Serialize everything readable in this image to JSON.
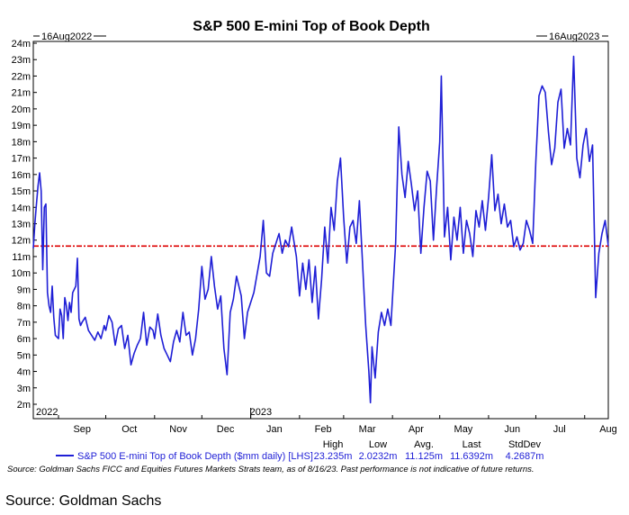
{
  "chart_data": {
    "type": "line",
    "title": "S&P 500 E-mini Top of Book Depth",
    "range_start_label": "16Aug2022",
    "range_end_label": "16Aug2023",
    "y_ticks": [
      "2m",
      "3m",
      "4m",
      "5m",
      "6m",
      "7m",
      "8m",
      "9m",
      "10m",
      "11m",
      "12m",
      "13m",
      "14m",
      "15m",
      "16m",
      "17m",
      "18m",
      "19m",
      "20m",
      "21m",
      "22m",
      "23m",
      "24m"
    ],
    "ylim": [
      2,
      24
    ],
    "xlim": [
      "2022-08-16",
      "2023-08-16"
    ],
    "x_ticks": [
      {
        "label": "Sep",
        "date": "2022-09-01"
      },
      {
        "label": "Oct",
        "date": "2022-10-01"
      },
      {
        "label": "Nov",
        "date": "2022-11-01"
      },
      {
        "label": "Dec",
        "date": "2022-12-01"
      },
      {
        "label": "Jan",
        "date": "2023-01-01"
      },
      {
        "label": "Feb",
        "date": "2023-02-01"
      },
      {
        "label": "Mar",
        "date": "2023-03-01"
      },
      {
        "label": "Apr",
        "date": "2023-04-01"
      },
      {
        "label": "May",
        "date": "2023-05-01"
      },
      {
        "label": "Jun",
        "date": "2023-06-01"
      },
      {
        "label": "Jul",
        "date": "2023-07-01"
      },
      {
        "label": "Aug",
        "date": "2023-08-01"
      }
    ],
    "year_labels": [
      {
        "label": "2022",
        "date": "2022-08-16"
      },
      {
        "label": "2023",
        "date": "2023-01-01"
      }
    ],
    "reference_line": {
      "value": 11.6392,
      "color": "#dd0000"
    },
    "series": [
      {
        "name": "S&P 500 E-mini Top of Book Depth ($mm daily) [LHS]",
        "color": "#1f1fd6",
        "points": [
          [
            "2022-08-16",
            11.5
          ],
          [
            "2022-08-17",
            13.0
          ],
          [
            "2022-08-18",
            14.2
          ],
          [
            "2022-08-19",
            15.3
          ],
          [
            "2022-08-20",
            16.1
          ],
          [
            "2022-08-21",
            15.0
          ],
          [
            "2022-08-22",
            10.2
          ],
          [
            "2022-08-23",
            14.0
          ],
          [
            "2022-08-24",
            14.2
          ],
          [
            "2022-08-25",
            8.8
          ],
          [
            "2022-08-26",
            8.0
          ],
          [
            "2022-08-27",
            7.6
          ],
          [
            "2022-08-28",
            9.2
          ],
          [
            "2022-08-29",
            7.3
          ],
          [
            "2022-08-30",
            6.2
          ],
          [
            "2022-08-31",
            6.1
          ],
          [
            "2022-09-01",
            6.0
          ],
          [
            "2022-09-02",
            7.8
          ],
          [
            "2022-09-03",
            7.4
          ],
          [
            "2022-09-04",
            6.0
          ],
          [
            "2022-09-05",
            8.5
          ],
          [
            "2022-09-06",
            8.0
          ],
          [
            "2022-09-07",
            7.1
          ],
          [
            "2022-09-08",
            8.2
          ],
          [
            "2022-09-09",
            7.6
          ],
          [
            "2022-09-10",
            8.8
          ],
          [
            "2022-09-12",
            9.2
          ],
          [
            "2022-09-13",
            10.9
          ],
          [
            "2022-09-14",
            7.2
          ],
          [
            "2022-09-15",
            6.8
          ],
          [
            "2022-09-16",
            7.0
          ],
          [
            "2022-09-18",
            7.3
          ],
          [
            "2022-09-20",
            6.5
          ],
          [
            "2022-09-22",
            6.2
          ],
          [
            "2022-09-24",
            5.9
          ],
          [
            "2022-09-26",
            6.4
          ],
          [
            "2022-09-28",
            6.0
          ],
          [
            "2022-09-30",
            6.8
          ],
          [
            "2022-10-01",
            6.5
          ],
          [
            "2022-10-03",
            7.4
          ],
          [
            "2022-10-05",
            7.0
          ],
          [
            "2022-10-07",
            5.6
          ],
          [
            "2022-10-09",
            6.6
          ],
          [
            "2022-10-11",
            6.8
          ],
          [
            "2022-10-13",
            5.4
          ],
          [
            "2022-10-15",
            6.2
          ],
          [
            "2022-10-17",
            4.4
          ],
          [
            "2022-10-19",
            5.1
          ],
          [
            "2022-10-21",
            5.6
          ],
          [
            "2022-10-23",
            6.0
          ],
          [
            "2022-10-25",
            7.6
          ],
          [
            "2022-10-27",
            5.6
          ],
          [
            "2022-10-29",
            6.7
          ],
          [
            "2022-10-31",
            6.5
          ],
          [
            "2022-11-01",
            6.0
          ],
          [
            "2022-11-03",
            7.5
          ],
          [
            "2022-11-05",
            6.2
          ],
          [
            "2022-11-07",
            5.4
          ],
          [
            "2022-11-09",
            5.0
          ],
          [
            "2022-11-11",
            4.6
          ],
          [
            "2022-11-13",
            5.8
          ],
          [
            "2022-11-15",
            6.5
          ],
          [
            "2022-11-17",
            5.8
          ],
          [
            "2022-11-19",
            7.6
          ],
          [
            "2022-11-21",
            6.2
          ],
          [
            "2022-11-23",
            6.4
          ],
          [
            "2022-11-25",
            5.0
          ],
          [
            "2022-11-27",
            6.0
          ],
          [
            "2022-11-29",
            7.8
          ],
          [
            "2022-12-01",
            10.4
          ],
          [
            "2022-12-03",
            8.4
          ],
          [
            "2022-12-05",
            9.0
          ],
          [
            "2022-12-07",
            11.0
          ],
          [
            "2022-12-09",
            9.2
          ],
          [
            "2022-12-11",
            7.8
          ],
          [
            "2022-12-13",
            8.6
          ],
          [
            "2022-12-15",
            5.4
          ],
          [
            "2022-12-17",
            3.8
          ],
          [
            "2022-12-19",
            7.6
          ],
          [
            "2022-12-21",
            8.4
          ],
          [
            "2022-12-23",
            9.8
          ],
          [
            "2022-12-26",
            8.6
          ],
          [
            "2022-12-28",
            6.0
          ],
          [
            "2022-12-30",
            7.6
          ],
          [
            "2023-01-03",
            8.8
          ],
          [
            "2023-01-05",
            9.9
          ],
          [
            "2023-01-07",
            11.0
          ],
          [
            "2023-01-09",
            13.2
          ],
          [
            "2023-01-11",
            10.0
          ],
          [
            "2023-01-13",
            9.8
          ],
          [
            "2023-01-15",
            11.2
          ],
          [
            "2023-01-17",
            11.8
          ],
          [
            "2023-01-19",
            12.4
          ],
          [
            "2023-01-21",
            11.2
          ],
          [
            "2023-01-23",
            12.0
          ],
          [
            "2023-01-25",
            11.6
          ],
          [
            "2023-01-27",
            12.8
          ],
          [
            "2023-01-30",
            11.0
          ],
          [
            "2023-02-01",
            8.6
          ],
          [
            "2023-02-03",
            10.6
          ],
          [
            "2023-02-05",
            9.0
          ],
          [
            "2023-02-07",
            10.8
          ],
          [
            "2023-02-09",
            8.2
          ],
          [
            "2023-02-11",
            10.4
          ],
          [
            "2023-02-13",
            7.2
          ],
          [
            "2023-02-15",
            9.6
          ],
          [
            "2023-02-17",
            12.8
          ],
          [
            "2023-02-19",
            10.6
          ],
          [
            "2023-02-21",
            14.0
          ],
          [
            "2023-02-23",
            12.6
          ],
          [
            "2023-02-25",
            15.6
          ],
          [
            "2023-02-27",
            17.0
          ],
          [
            "2023-03-01",
            13.4
          ],
          [
            "2023-03-03",
            10.6
          ],
          [
            "2023-03-05",
            12.8
          ],
          [
            "2023-03-07",
            13.2
          ],
          [
            "2023-03-09",
            11.8
          ],
          [
            "2023-03-11",
            14.4
          ],
          [
            "2023-03-13",
            10.6
          ],
          [
            "2023-03-15",
            6.8
          ],
          [
            "2023-03-17",
            4.0
          ],
          [
            "2023-03-18",
            2.1
          ],
          [
            "2023-03-19",
            5.5
          ],
          [
            "2023-03-21",
            3.6
          ],
          [
            "2023-03-23",
            6.4
          ],
          [
            "2023-03-25",
            7.6
          ],
          [
            "2023-03-27",
            6.8
          ],
          [
            "2023-03-29",
            7.8
          ],
          [
            "2023-03-31",
            6.8
          ],
          [
            "2023-04-03",
            11.8
          ],
          [
            "2023-04-05",
            18.9
          ],
          [
            "2023-04-07",
            16.0
          ],
          [
            "2023-04-09",
            14.6
          ],
          [
            "2023-04-11",
            16.8
          ],
          [
            "2023-04-13",
            15.4
          ],
          [
            "2023-04-15",
            13.8
          ],
          [
            "2023-04-17",
            15.0
          ],
          [
            "2023-04-19",
            11.2
          ],
          [
            "2023-04-21",
            14.0
          ],
          [
            "2023-04-23",
            16.2
          ],
          [
            "2023-04-25",
            15.6
          ],
          [
            "2023-04-27",
            12.0
          ],
          [
            "2023-04-29",
            15.2
          ],
          [
            "2023-05-01",
            18.0
          ],
          [
            "2023-05-02",
            22.0
          ],
          [
            "2023-05-04",
            12.2
          ],
          [
            "2023-05-06",
            14.0
          ],
          [
            "2023-05-08",
            10.8
          ],
          [
            "2023-05-10",
            13.4
          ],
          [
            "2023-05-12",
            12.0
          ],
          [
            "2023-05-14",
            14.0
          ],
          [
            "2023-05-16",
            11.2
          ],
          [
            "2023-05-18",
            13.2
          ],
          [
            "2023-05-20",
            12.4
          ],
          [
            "2023-05-22",
            11.0
          ],
          [
            "2023-05-24",
            13.8
          ],
          [
            "2023-05-26",
            12.8
          ],
          [
            "2023-05-28",
            14.4
          ],
          [
            "2023-05-30",
            12.6
          ],
          [
            "2023-06-01",
            14.6
          ],
          [
            "2023-06-03",
            17.2
          ],
          [
            "2023-06-05",
            13.8
          ],
          [
            "2023-06-07",
            14.8
          ],
          [
            "2023-06-09",
            13.0
          ],
          [
            "2023-06-11",
            14.2
          ],
          [
            "2023-06-13",
            12.8
          ],
          [
            "2023-06-15",
            13.2
          ],
          [
            "2023-06-17",
            11.6
          ],
          [
            "2023-06-19",
            12.2
          ],
          [
            "2023-06-21",
            11.4
          ],
          [
            "2023-06-23",
            11.8
          ],
          [
            "2023-06-25",
            13.2
          ],
          [
            "2023-06-27",
            12.6
          ],
          [
            "2023-06-29",
            11.8
          ],
          [
            "2023-07-01",
            16.8
          ],
          [
            "2023-07-03",
            20.8
          ],
          [
            "2023-07-05",
            21.4
          ],
          [
            "2023-07-07",
            21.0
          ],
          [
            "2023-07-09",
            18.6
          ],
          [
            "2023-07-11",
            16.6
          ],
          [
            "2023-07-13",
            17.6
          ],
          [
            "2023-07-15",
            20.4
          ],
          [
            "2023-07-17",
            21.2
          ],
          [
            "2023-07-19",
            17.6
          ],
          [
            "2023-07-21",
            18.8
          ],
          [
            "2023-07-23",
            17.8
          ],
          [
            "2023-07-25",
            23.2
          ],
          [
            "2023-07-27",
            17.0
          ],
          [
            "2023-07-29",
            15.8
          ],
          [
            "2023-07-31",
            17.8
          ],
          [
            "2023-08-02",
            18.8
          ],
          [
            "2023-08-04",
            16.8
          ],
          [
            "2023-08-06",
            17.8
          ],
          [
            "2023-08-08",
            8.5
          ],
          [
            "2023-08-10",
            11.2
          ],
          [
            "2023-08-12",
            12.4
          ],
          [
            "2023-08-14",
            13.2
          ],
          [
            "2023-08-16",
            11.64
          ]
        ]
      }
    ],
    "legend_stats": {
      "headers": [
        "High",
        "Low",
        "Avg.",
        "Last",
        "StdDev"
      ],
      "values": [
        "23.235m",
        "2.0232m",
        "11.125m",
        "11.6392m",
        "4.2687m"
      ]
    }
  },
  "footnote": "Source: Goldman Sachs FICC and Equities Futures Markets Strats team, as of 8/16/23. Past performance is not indicative of future returns.",
  "source": "Source: Goldman Sachs"
}
